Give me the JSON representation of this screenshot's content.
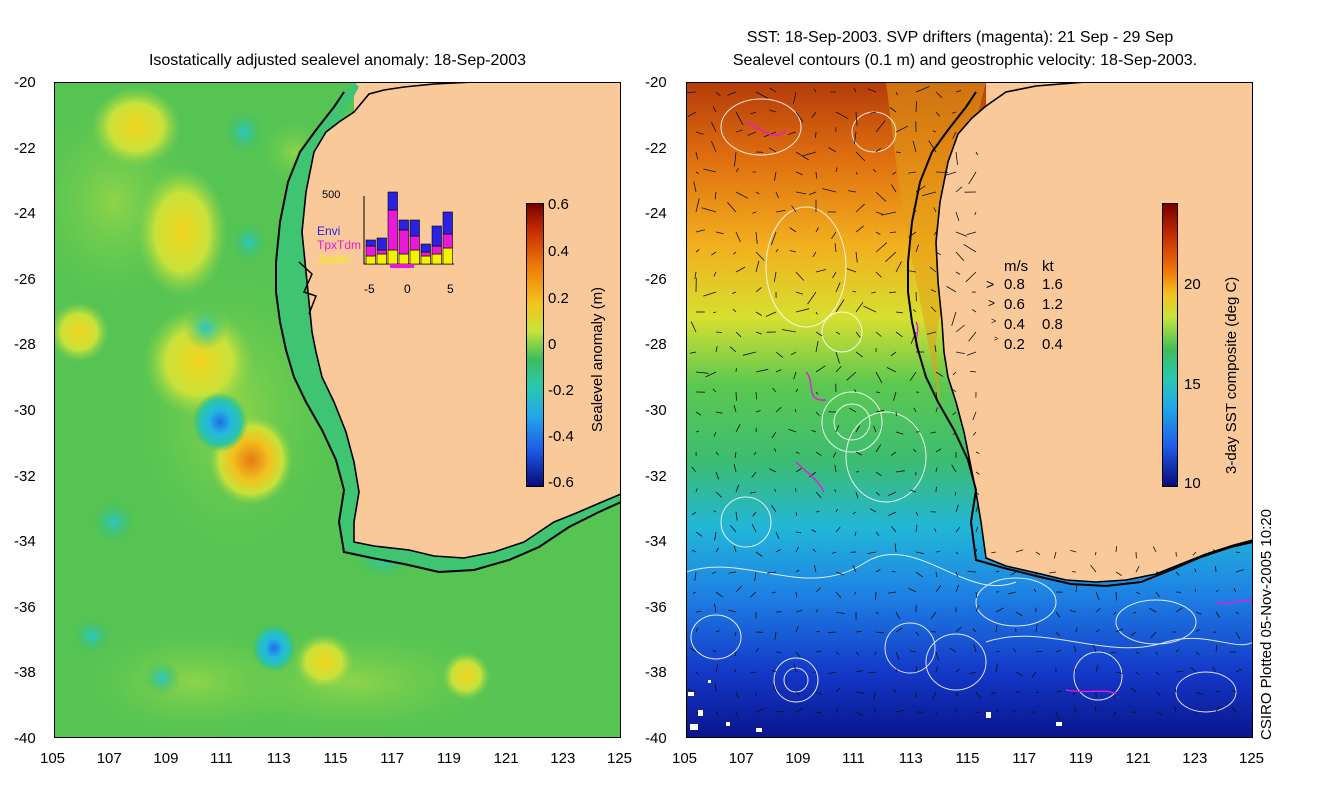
{
  "left_panel": {
    "title": "Isostatically adjusted sealevel anomaly: 18-Sep-2003",
    "y_ticks": [
      "-20",
      "-22",
      "-24",
      "-26",
      "-28",
      "-30",
      "-32",
      "-34",
      "-36",
      "-38",
      "-40"
    ],
    "x_ticks": [
      "105",
      "107",
      "109",
      "111",
      "113",
      "115",
      "117",
      "119",
      "121",
      "123",
      "125"
    ],
    "colorbar": {
      "label": "Sealevel anomaly (m)",
      "ticks": [
        "0.6",
        "0.4",
        "0.2",
        "0",
        "-0.2",
        "-0.4",
        "-0.6"
      ]
    },
    "inset": {
      "top_label": "500",
      "x_ticks": [
        "-5",
        "0",
        "5"
      ],
      "legend": [
        {
          "label": "Envi",
          "color": "#2a22e0"
        },
        {
          "label": "TpxTdm",
          "color": "#e81ad8"
        },
        {
          "label": "Jason",
          "color": "#f3f300"
        }
      ]
    }
  },
  "right_panel": {
    "title_line1": "SST: 18-Sep-2003. SVP drifters (magenta): 21 Sep - 29 Sep",
    "title_line2": "Sealevel contours (0.1 m) and geostrophic velocity: 18-Sep-2003.",
    "y_ticks": [
      "-20",
      "-22",
      "-24",
      "-26",
      "-28",
      "-30",
      "-32",
      "-34",
      "-36",
      "-38",
      "-40"
    ],
    "x_ticks": [
      "105",
      "107",
      "109",
      "111",
      "113",
      "115",
      "117",
      "119",
      "121",
      "123",
      "125"
    ],
    "colorbar": {
      "label": "3-day SST composite (deg C)",
      "ticks": [
        "20",
        "15",
        "10"
      ]
    },
    "velocity_legend": {
      "header_ms": "m/s",
      "header_kt": "kt",
      "rows": [
        {
          "ms": "0.8",
          "kt": "1.6"
        },
        {
          "ms": "0.6",
          "kt": "1.2"
        },
        {
          "ms": "0.4",
          "kt": "0.8"
        },
        {
          "ms": "0.2",
          "kt": "0.4"
        }
      ]
    }
  },
  "credit": "CSIRO Plotted 05-Nov-2005 10:20",
  "colors": {
    "land": "#f9c99a",
    "ocean_left": "#3dbd5c",
    "coast": "#000000"
  }
}
